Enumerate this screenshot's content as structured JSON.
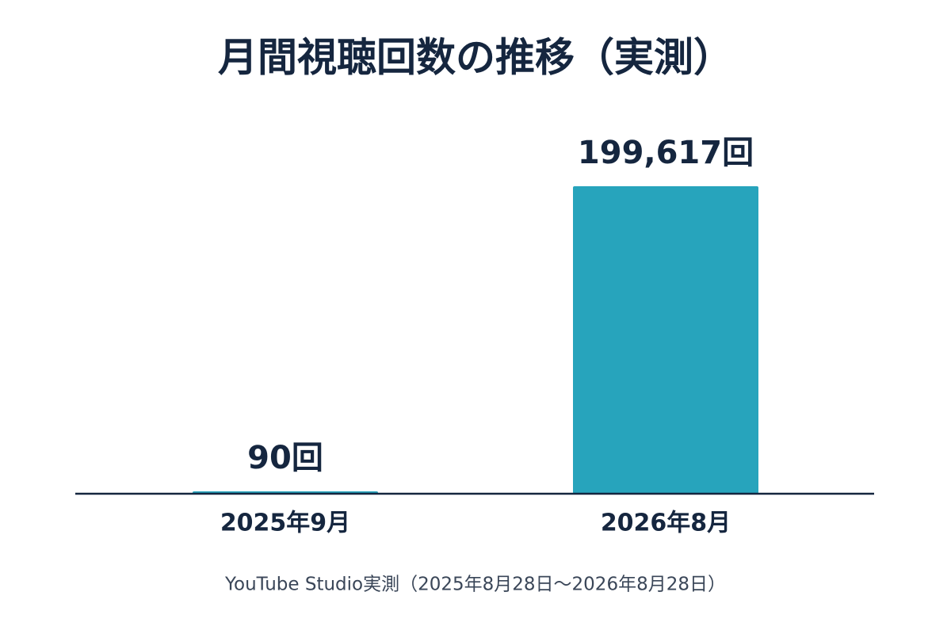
{
  "chart_data": {
    "type": "bar",
    "title": "月間視聴回数の推移（実測）",
    "categories": [
      "2025年9月",
      "2026年8月"
    ],
    "values": [
      90,
      199617
    ],
    "value_labels": [
      "90回",
      "199,617回"
    ],
    "color": "#27a4bc",
    "note": "YouTube Studio実測（2025年8月28日〜2026年8月28日）"
  }
}
